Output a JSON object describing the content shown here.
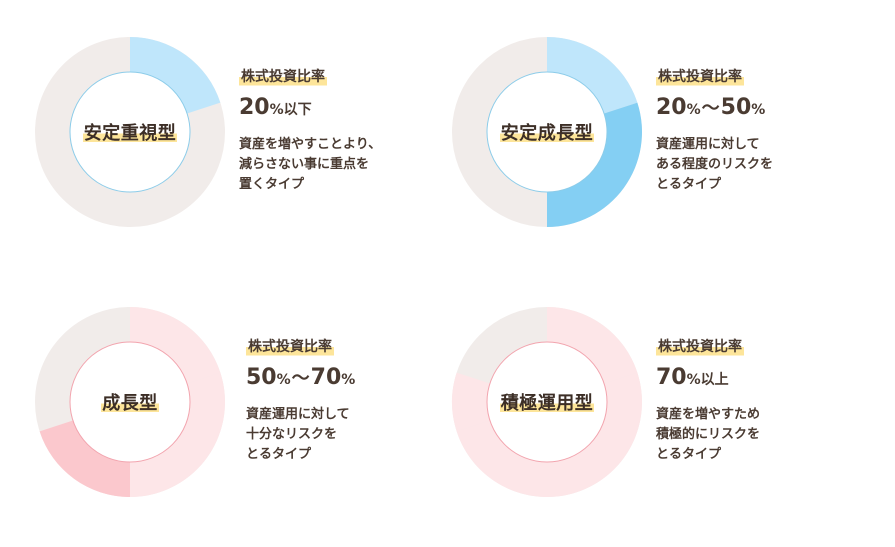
{
  "colors": {
    "track": "#f1ecea",
    "blue_light": "#bfe6fb",
    "blue_main": "#84cff3",
    "pink_light": "#fde6e8",
    "pink_main": "#fbc8cd",
    "center_stroke_blue": "#8ccce9",
    "center_stroke_pink": "#f2a4ae",
    "highlight": "#fde59a",
    "text": "#4a3b32"
  },
  "cards": [
    {
      "name": "安定重視型",
      "tag": "株式投資比率",
      "ratio": {
        "from": "20",
        "to": "",
        "suffix": "以下"
      },
      "share": 0.2,
      "palette": "blue",
      "desc": [
        "資産を増やすことより、",
        "減らさない事に重点を",
        "置くタイプ"
      ]
    },
    {
      "name": "安定成長型",
      "tag": "株式投資比率",
      "ratio": {
        "from": "20",
        "to": "50",
        "suffix": ""
      },
      "share": 0.5,
      "palette": "blue",
      "desc": [
        "資産運用に対して",
        "ある程度のリスクを",
        "とるタイプ"
      ]
    },
    {
      "name": "成長型",
      "tag": "株式投資比率",
      "ratio": {
        "from": "50",
        "to": "70",
        "suffix": ""
      },
      "share": 0.7,
      "palette": "pink",
      "desc": [
        "資産運用に対して",
        "十分なリスクを",
        "とるタイプ"
      ]
    },
    {
      "name": "積極運用型",
      "tag": "株式投資比率",
      "ratio": {
        "from": "70",
        "to": "",
        "suffix": "以上"
      },
      "share": 0.8,
      "palette": "pink",
      "desc": [
        "資産を増やすため",
        "積極的にリスクを",
        "とるタイプ"
      ]
    }
  ]
}
